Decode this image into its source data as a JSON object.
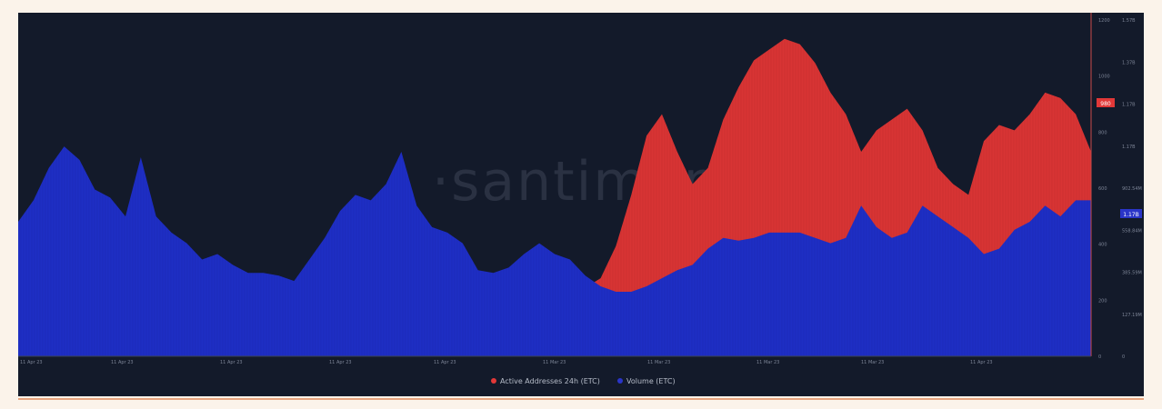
{
  "watermark": "·santiment·",
  "chart_data": {
    "type": "area",
    "x_ticks": [
      "11 Apr 23",
      "11 Apr 23",
      "11 Apr 23",
      "11 Apr 23",
      "11 Apr 23",
      "11 Mar 23",
      "11 Mar 23",
      "11 Mar 23",
      "11 Mar 23",
      "11 Apr 23"
    ],
    "right_axis_1_ticks": [
      "1200",
      "1000",
      "800",
      "600",
      "400",
      "200",
      "0"
    ],
    "right_axis_2_ticks": [
      "1.57B",
      "1.37B",
      "1.17B",
      "1.17B",
      "902.54M",
      "558.84M",
      "385.59M",
      "127.19M",
      "0"
    ],
    "current_value_1": "980",
    "current_value_2": "1.17B",
    "legend": [
      {
        "label": "Active Addresses 24h (ETC)",
        "color": "#e23838"
      },
      {
        "label": "Volume (ETC)",
        "color": "#2a35c8"
      }
    ],
    "series": [
      {
        "name": "Active Addresses 24h (ETC)",
        "color": "#d83434",
        "values": [
          30,
          28,
          25,
          26,
          28,
          30,
          32,
          31,
          30,
          28,
          27,
          24,
          18,
          12,
          10,
          22,
          45,
          60,
          48,
          38,
          36,
          34,
          36,
          40,
          42,
          38,
          34,
          36,
          40,
          38,
          36,
          44,
          90,
          170,
          230,
          260,
          252,
          255,
          290,
          410,
          600,
          820,
          900,
          760,
          640,
          700,
          880,
          1000,
          1100,
          1140,
          1180,
          1160,
          1090,
          980,
          900,
          760,
          840,
          880,
          920,
          840,
          700,
          640,
          600,
          800,
          860,
          840,
          900,
          980,
          960,
          900,
          760
        ]
      },
      {
        "name": "Volume (ETC)",
        "color": "#1e2ec4",
        "values": [
          500,
          580,
          700,
          780,
          730,
          620,
          590,
          520,
          740,
          520,
          460,
          420,
          360,
          380,
          340,
          310,
          310,
          300,
          280,
          360,
          440,
          540,
          600,
          580,
          640,
          760,
          560,
          480,
          460,
          420,
          320,
          310,
          330,
          380,
          420,
          380,
          360,
          300,
          260,
          240,
          240,
          260,
          290,
          320,
          340,
          400,
          440,
          430,
          440,
          460,
          460,
          460,
          440,
          420,
          440,
          560,
          480,
          440,
          460,
          560,
          520,
          480,
          440,
          380,
          400,
          470,
          500,
          560,
          520,
          580,
          580
        ]
      }
    ],
    "xlim": [
      0,
      70
    ],
    "ylim": [
      0,
      1250
    ]
  }
}
